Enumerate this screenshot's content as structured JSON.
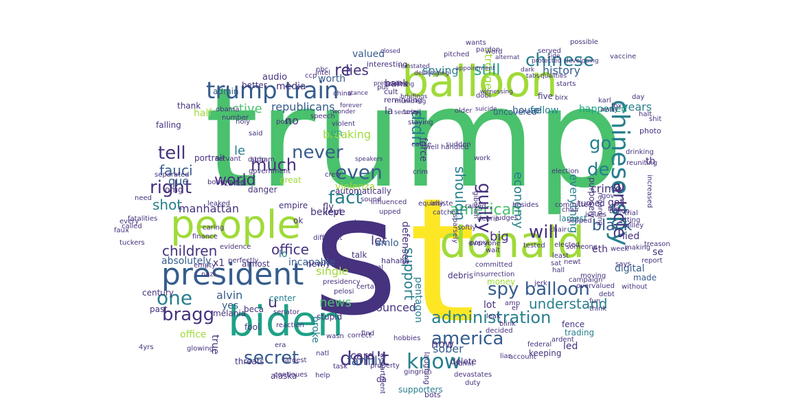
{
  "palette": {
    "purple": "#440154",
    "indigo": "#46327e",
    "blue": "#365c8d",
    "teal": "#277f8e",
    "seagreen": "#1fa187",
    "green": "#4ac16d",
    "lime": "#a0da39",
    "yellow": "#fde725"
  },
  "words": [
    {
      "text": "trump",
      "color": "green"
    },
    {
      "text": "s",
      "color": "indigo"
    },
    {
      "text": "t",
      "color": "yellow"
    },
    {
      "text": "balloon",
      "color": "lime"
    },
    {
      "text": "people",
      "color": "lime"
    },
    {
      "text": "biden",
      "color": "seagreen"
    },
    {
      "text": "president",
      "color": "blue"
    },
    {
      "text": "donald",
      "color": "lime"
    },
    {
      "text": "trump train",
      "color": "blue"
    },
    {
      "text": "spy balloon",
      "color": "blue"
    },
    {
      "text": "administration",
      "color": "teal"
    },
    {
      "text": "chinese",
      "color": "teal"
    },
    {
      "text": "chinese spy",
      "color": "teal"
    },
    {
      "text": "america",
      "color": "blue"
    },
    {
      "text": "know",
      "color": "teal"
    },
    {
      "text": "american",
      "color": "green"
    },
    {
      "text": "secret",
      "color": "blue"
    },
    {
      "text": "don't",
      "color": "indigo"
    },
    {
      "text": "right",
      "color": "indigo"
    },
    {
      "text": "much",
      "color": "indigo"
    },
    {
      "text": "never",
      "color": "blue"
    },
    {
      "text": "even",
      "color": "blue"
    },
    {
      "text": "fact",
      "color": "teal"
    },
    {
      "text": "tell",
      "color": "indigo"
    },
    {
      "text": "go",
      "color": "teal"
    },
    {
      "text": "will",
      "color": "indigo"
    },
    {
      "text": "bragg",
      "color": "indigo"
    },
    {
      "text": "one",
      "color": "teal"
    },
    {
      "text": "didn",
      "color": "teal"
    },
    {
      "text": "guilty",
      "color": "indigo"
    },
    {
      "text": "article",
      "color": "indigo"
    },
    {
      "text": "still",
      "color": "seagreen"
    },
    {
      "text": "black",
      "color": "blue"
    },
    {
      "text": "understand",
      "color": "teal"
    },
    {
      "text": "shouldn",
      "color": "teal"
    },
    {
      "text": "economy",
      "color": "teal"
    },
    {
      "text": "fauci",
      "color": "blue"
    },
    {
      "text": "shot",
      "color": "teal"
    },
    {
      "text": "de",
      "color": "teal"
    },
    {
      "text": "republicans",
      "color": "blue"
    },
    {
      "text": "world",
      "color": "indigo"
    },
    {
      "text": "children",
      "color": "indigo"
    },
    {
      "text": "office",
      "color": "indigo"
    },
    {
      "text": "support",
      "color": "teal"
    },
    {
      "text": "re",
      "color": "indigo"
    },
    {
      "text": "lies",
      "color": "indigo"
    },
    {
      "text": "family",
      "color": "blue"
    },
    {
      "text": "news",
      "color": "green"
    },
    {
      "text": "announced",
      "color": "indigo"
    },
    {
      "text": "let",
      "color": "indigo"
    },
    {
      "text": "big",
      "color": "indigo"
    },
    {
      "text": "manhattan",
      "color": "indigo"
    },
    {
      "text": "active",
      "color": "green"
    },
    {
      "text": "breaking",
      "color": "lime"
    },
    {
      "text": "now",
      "color": "indigo"
    },
    {
      "text": "history",
      "color": "blue"
    },
    {
      "text": "spying",
      "color": "teal"
    },
    {
      "text": "years",
      "color": "teal"
    },
    {
      "text": "crime",
      "color": "indigo"
    },
    {
      "text": "everything",
      "color": "teal"
    },
    {
      "text": "single",
      "color": "lime"
    },
    {
      "text": "sober",
      "color": "blue"
    },
    {
      "text": "alvin",
      "color": "blue"
    },
    {
      "text": "u",
      "color": "indigo"
    },
    {
      "text": "card",
      "color": "indigo"
    },
    {
      "text": "absolutely",
      "color": "blue"
    },
    {
      "text": "happened",
      "color": "seagreen"
    },
    {
      "text": "pentagon",
      "color": "teal"
    },
    {
      "text": "force",
      "color": "indigo"
    },
    {
      "text": "house",
      "color": "blue"
    },
    {
      "text": "follow",
      "color": "teal"
    },
    {
      "text": "que",
      "color": "blue"
    },
    {
      "text": "no",
      "color": "indigo"
    },
    {
      "text": "le",
      "color": "teal"
    },
    {
      "text": "en",
      "color": "seagreen"
    },
    {
      "text": "true",
      "color": "indigo"
    },
    {
      "text": "led",
      "color": "indigo"
    },
    {
      "text": "lied",
      "color": "indigo"
    },
    {
      "text": "eth",
      "color": "indigo"
    },
    {
      "text": "digital",
      "color": "blue"
    },
    {
      "text": "lot",
      "color": "indigo"
    },
    {
      "text": "yes",
      "color": "blue"
    },
    {
      "text": "incapable",
      "color": "blue"
    },
    {
      "text": "amlo",
      "color": "blue"
    },
    {
      "text": "bank",
      "color": "indigo"
    },
    {
      "text": "media",
      "color": "indigo"
    },
    {
      "text": "worth",
      "color": "blue"
    },
    {
      "text": "valued",
      "color": "blue"
    },
    {
      "text": "audio",
      "color": "indigo"
    },
    {
      "text": "violenza",
      "color": "lime"
    },
    {
      "text": "believe",
      "color": "indigo"
    },
    {
      "text": "kept",
      "color": "indigo"
    },
    {
      "text": "fly",
      "color": "indigo"
    },
    {
      "text": "world",
      "color": "indigo"
    },
    {
      "text": "got",
      "color": "indigo"
    },
    {
      "text": "made",
      "color": "blue"
    },
    {
      "text": "th",
      "color": "indigo"
    },
    {
      "text": "se",
      "color": "indigo"
    },
    {
      "text": "x1",
      "color": "indigo"
    },
    {
      "text": "lo",
      "color": "teal"
    },
    {
      "text": "keeping",
      "color": "indigo"
    },
    {
      "text": "trading",
      "color": "teal"
    },
    {
      "text": "alaska",
      "color": "indigo"
    },
    {
      "text": "da",
      "color": "indigo"
    },
    {
      "text": "bots",
      "color": "indigo"
    },
    {
      "text": "supporters",
      "color": "teal"
    },
    {
      "text": "threats",
      "color": "indigo"
    },
    {
      "text": "la",
      "color": "indigo"
    },
    {
      "text": "ok",
      "color": "indigo"
    },
    {
      "text": "beca",
      "color": "indigo"
    },
    {
      "text": "empire",
      "color": "indigo"
    },
    {
      "text": "danger",
      "color": "indigo"
    },
    {
      "text": "great",
      "color": "lime"
    },
    {
      "text": "portrait",
      "color": "indigo"
    },
    {
      "text": "omg",
      "color": "indigo"
    },
    {
      "text": "half",
      "color": "lime"
    },
    {
      "text": "thank",
      "color": "indigo"
    },
    {
      "text": "falling",
      "color": "indigo"
    },
    {
      "text": "admin",
      "color": "blue"
    },
    {
      "text": "better",
      "color": "indigo"
    },
    {
      "text": "center",
      "color": "teal"
    },
    {
      "text": "fence",
      "color": "indigo"
    },
    {
      "text": "past",
      "color": "indigo"
    },
    {
      "text": "century",
      "color": "indigo"
    },
    {
      "text": "melania",
      "color": "indigo"
    },
    {
      "text": "office",
      "color": "lime"
    },
    {
      "text": "fool",
      "color": "indigo"
    },
    {
      "text": "newly",
      "color": "indigo"
    },
    {
      "text": "almost",
      "color": "indigo"
    },
    {
      "text": "stupid",
      "color": "indigo"
    },
    {
      "text": "broke",
      "color": "teal"
    },
    {
      "text": "money",
      "color": "lime"
    },
    {
      "text": "talk",
      "color": "indigo"
    },
    {
      "text": "giv",
      "color": "indigo"
    },
    {
      "text": "interesting",
      "color": "indigo"
    },
    {
      "text": "possible",
      "color": "indigo"
    },
    {
      "text": "pardon",
      "color": "indigo"
    },
    {
      "text": "served",
      "color": "indigo"
    },
    {
      "text": "vaccine",
      "color": "indigo"
    },
    {
      "text": "uncovered",
      "color": "blue"
    },
    {
      "text": "five",
      "color": "indigo"
    },
    {
      "text": "turned",
      "color": "indigo"
    },
    {
      "text": "lamest",
      "color": "teal"
    },
    {
      "text": "delete",
      "color": "indigo"
    },
    {
      "text": "reminding",
      "color": "indigo"
    },
    {
      "text": "cult",
      "color": "indigo"
    },
    {
      "text": "stronger",
      "color": "lime"
    },
    {
      "text": "word",
      "color": "indigo"
    },
    {
      "text": "without",
      "color": "indigo"
    },
    {
      "text": "committee",
      "color": "indigo"
    },
    {
      "text": "fun",
      "color": "indigo"
    },
    {
      "text": "tested",
      "color": "indigo"
    },
    {
      "text": "sat",
      "color": "indigo"
    },
    {
      "text": "overvalued",
      "color": "indigo"
    },
    {
      "text": "trial",
      "color": "indigo"
    },
    {
      "text": "drinking",
      "color": "indigo"
    },
    {
      "text": "photo",
      "color": "indigo"
    },
    {
      "text": "away",
      "color": "indigo"
    },
    {
      "text": "week",
      "color": "indigo"
    },
    {
      "text": "halt",
      "color": "indigo"
    },
    {
      "text": "equally",
      "color": "indigo"
    },
    {
      "text": "hahaha",
      "color": "indigo"
    },
    {
      "text": "different",
      "color": "indigo"
    },
    {
      "text": "property",
      "color": "indigo"
    },
    {
      "text": "gingrich",
      "color": "indigo"
    },
    {
      "text": "help",
      "color": "indigo"
    },
    {
      "text": "largest",
      "color": "indigo"
    },
    {
      "text": "called",
      "color": "indigo"
    },
    {
      "text": "need",
      "color": "indigo"
    },
    {
      "text": "finance",
      "color": "indigo"
    },
    {
      "text": "servant",
      "color": "indigo"
    },
    {
      "text": "durham",
      "color": "indigo"
    },
    {
      "text": "bobo",
      "color": "indigo"
    },
    {
      "text": "leaked",
      "color": "indigo"
    },
    {
      "text": "twitch",
      "color": "indigo"
    },
    {
      "text": "china",
      "color": "indigo"
    },
    {
      "text": "put",
      "color": "indigo"
    },
    {
      "text": "intel",
      "color": "indigo"
    },
    {
      "text": "ccp",
      "color": "indigo"
    },
    {
      "text": "nbc",
      "color": "indigo"
    },
    {
      "text": "sound",
      "color": "indigo"
    },
    {
      "text": "influenced",
      "color": "indigo"
    },
    {
      "text": "raised",
      "color": "indigo"
    },
    {
      "text": "catches",
      "color": "indigo"
    },
    {
      "text": "billion",
      "color": "indigo"
    },
    {
      "text": "issues",
      "color": "indigo"
    },
    {
      "text": "besides",
      "color": "indigo"
    },
    {
      "text": "flex",
      "color": "indigo"
    },
    {
      "text": "sitting",
      "color": "indigo"
    },
    {
      "text": "making",
      "color": "indigo"
    },
    {
      "text": "says",
      "color": "indigo"
    },
    {
      "text": "report",
      "color": "indigo"
    },
    {
      "text": "treason",
      "color": "indigo"
    },
    {
      "text": "wait",
      "color": "indigo"
    },
    {
      "text": "jerk",
      "color": "indigo"
    },
    {
      "text": "campaign",
      "color": "indigo"
    },
    {
      "text": "someone",
      "color": "indigo"
    },
    {
      "text": "moving",
      "color": "indigo"
    },
    {
      "text": "debt",
      "color": "indigo"
    },
    {
      "text": "chair",
      "color": "indigo"
    },
    {
      "text": "milley",
      "color": "indigo"
    },
    {
      "text": "scoped",
      "color": "indigo"
    },
    {
      "text": "gov",
      "color": "indigo"
    },
    {
      "text": "fox",
      "color": "indigo"
    },
    {
      "text": "birx",
      "color": "indigo"
    },
    {
      "text": "karl",
      "color": "indigo"
    },
    {
      "text": "starts",
      "color": "indigo"
    },
    {
      "text": "wants",
      "color": "indigo"
    },
    {
      "text": "pitched",
      "color": "indigo"
    },
    {
      "text": "closed",
      "color": "indigo"
    },
    {
      "text": "briefings",
      "color": "indigo"
    },
    {
      "text": "security",
      "color": "indigo"
    },
    {
      "text": "witnessing",
      "color": "indigo"
    },
    {
      "text": "suicide",
      "color": "indigo"
    },
    {
      "text": "day",
      "color": "indigo"
    },
    {
      "text": "shit",
      "color": "indigo"
    },
    {
      "text": "increased",
      "color": "indigo"
    },
    {
      "text": "think",
      "color": "indigo"
    },
    {
      "text": "amp",
      "color": "indigo"
    },
    {
      "text": "er",
      "color": "indigo"
    },
    {
      "text": "popul",
      "color": "indigo"
    },
    {
      "text": "everyone",
      "color": "indigo"
    },
    {
      "text": "election",
      "color": "indigo"
    },
    {
      "text": "reuniting",
      "color": "indigo"
    },
    {
      "text": "caring",
      "color": "indigo"
    },
    {
      "text": "holy",
      "color": "indigo"
    },
    {
      "text": "post",
      "color": "indigo"
    },
    {
      "text": "obama",
      "color": "indigo"
    },
    {
      "text": "number",
      "color": "indigo"
    },
    {
      "text": "violent",
      "color": "indigo"
    },
    {
      "text": "speech",
      "color": "indigo"
    },
    {
      "text": "stop",
      "color": "indigo"
    },
    {
      "text": "government",
      "color": "indigo"
    },
    {
      "text": "separated",
      "color": "indigo"
    },
    {
      "text": "fatalities",
      "color": "indigo"
    },
    {
      "text": "perfectly",
      "color": "indigo"
    },
    {
      "text": "evidence",
      "color": "indigo"
    },
    {
      "text": "reaction",
      "color": "indigo"
    },
    {
      "text": "senator",
      "color": "indigo"
    },
    {
      "text": "era",
      "color": "indigo"
    },
    {
      "text": "natl",
      "color": "indigo"
    },
    {
      "text": "wasn",
      "color": "indigo"
    },
    {
      "text": "task",
      "color": "indigo"
    },
    {
      "text": "general",
      "color": "indigo"
    },
    {
      "text": "pelosi",
      "color": "indigo"
    },
    {
      "text": "presidency",
      "color": "indigo"
    },
    {
      "text": "debris",
      "color": "indigo"
    },
    {
      "text": "find",
      "color": "indigo"
    },
    {
      "text": "cleaning",
      "color": "indigo"
    },
    {
      "text": "mumbling",
      "color": "indigo"
    },
    {
      "text": "said",
      "color": "indigo"
    },
    {
      "text": "tuckers",
      "color": "indigo"
    },
    {
      "text": "every",
      "color": "indigo"
    },
    {
      "text": "faux",
      "color": "indigo"
    },
    {
      "text": "4yrs",
      "color": "indigo"
    },
    {
      "text": "glowing",
      "color": "indigo"
    },
    {
      "text": "empty",
      "color": "indigo"
    },
    {
      "text": "nazi",
      "color": "indigo"
    },
    {
      "text": "devastates",
      "color": "indigo"
    },
    {
      "text": "duty",
      "color": "indigo"
    },
    {
      "text": "liar",
      "color": "indigo"
    },
    {
      "text": "account",
      "color": "indigo"
    },
    {
      "text": "ardent",
      "color": "indigo"
    },
    {
      "text": "federal",
      "color": "indigo"
    },
    {
      "text": "laughing",
      "color": "indigo"
    },
    {
      "text": "department",
      "color": "indigo"
    },
    {
      "text": "hobbies",
      "color": "indigo"
    },
    {
      "text": "continues",
      "color": "indigo"
    },
    {
      "text": "correct",
      "color": "indigo"
    },
    {
      "text": "admit",
      "color": "indigo"
    },
    {
      "text": "decided",
      "color": "indigo"
    },
    {
      "text": "blink",
      "color": "indigo"
    },
    {
      "text": "leak",
      "color": "indigo"
    },
    {
      "text": "committed",
      "color": "indigo"
    },
    {
      "text": "insurrection",
      "color": "indigo"
    },
    {
      "text": "insiste",
      "color": "indigo"
    },
    {
      "text": "certa",
      "color": "indigo"
    },
    {
      "text": "upped",
      "color": "indigo"
    },
    {
      "text": "sparsely",
      "color": "indigo"
    },
    {
      "text": "softly",
      "color": "indigo"
    },
    {
      "text": "debrie",
      "color": "indigo"
    },
    {
      "text": "judges",
      "color": "indigo"
    },
    {
      "text": "chair",
      "color": "indigo"
    },
    {
      "text": "newt",
      "color": "indigo"
    },
    {
      "text": "least",
      "color": "indigo"
    },
    {
      "text": "hall",
      "color": "indigo"
    },
    {
      "text": "elected",
      "color": "indigo"
    },
    {
      "text": "defenses",
      "color": "indigo"
    },
    {
      "text": "well handled",
      "color": "indigo"
    },
    {
      "text": "cause",
      "color": "indigo"
    },
    {
      "text": "crim",
      "color": "indigo"
    },
    {
      "text": "giberish",
      "color": "indigo"
    },
    {
      "text": "work",
      "color": "indigo"
    },
    {
      "text": "sudden",
      "color": "indigo"
    },
    {
      "text": "tossil",
      "color": "indigo"
    },
    {
      "text": "dobl",
      "color": "indigo"
    },
    {
      "text": "older",
      "color": "indigo"
    },
    {
      "text": "appointment",
      "color": "indigo"
    },
    {
      "text": "reinstated",
      "color": "indigo"
    },
    {
      "text": "debilitating",
      "color": "indigo"
    },
    {
      "text": "purposely",
      "color": "indigo"
    },
    {
      "text": "regarding",
      "color": "indigo"
    },
    {
      "text": "developing",
      "color": "indigo"
    },
    {
      "text": "qualities",
      "color": "indigo"
    },
    {
      "text": "tabs",
      "color": "indigo"
    },
    {
      "text": "dark",
      "color": "indigo"
    },
    {
      "text": "alternat",
      "color": "indigo"
    },
    {
      "text": "side",
      "color": "indigo"
    },
    {
      "text": "protected",
      "color": "indigo"
    },
    {
      "text": "staying",
      "color": "indigo"
    },
    {
      "text": "pretending",
      "color": "indigo"
    },
    {
      "text": "stance",
      "color": "indigo"
    },
    {
      "text": "forever",
      "color": "indigo"
    },
    {
      "text": "wonder",
      "color": "indigo"
    },
    {
      "text": "crew",
      "color": "indigo"
    },
    {
      "text": "speakers",
      "color": "indigo"
    },
    {
      "text": "automatically",
      "color": "indigo"
    }
  ]
}
